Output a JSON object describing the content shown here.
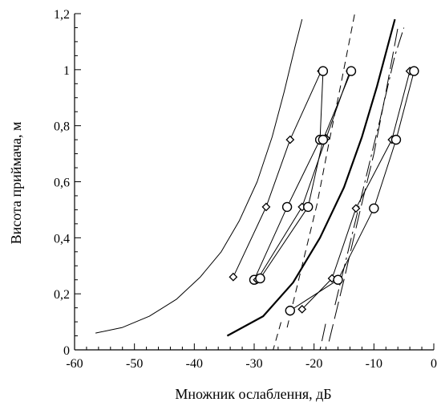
{
  "chart_data": {
    "type": "line",
    "title": "",
    "xlabel": "Множник ослаблення, дБ",
    "ylabel": "Висота приймача, м",
    "xlim": [
      -60,
      0
    ],
    "ylim": [
      0,
      1.2
    ],
    "grid": false,
    "x_ticks": [
      {
        "value": -60,
        "label": "-60"
      },
      {
        "value": -50,
        "label": "-50"
      },
      {
        "value": -40,
        "label": "-40"
      },
      {
        "value": -30,
        "label": "-30"
      },
      {
        "value": -20,
        "label": "-20"
      },
      {
        "value": -10,
        "label": "-10"
      },
      {
        "value": 0,
        "label": "0"
      }
    ],
    "y_ticks": [
      {
        "value": 0,
        "label": "0"
      },
      {
        "value": 0.2,
        "label": "0,2"
      },
      {
        "value": 0.4,
        "label": "0,4"
      },
      {
        "value": 0.6,
        "label": "0,6"
      },
      {
        "value": 0.8,
        "label": "0,8"
      },
      {
        "value": 1.0,
        "label": "1"
      },
      {
        "value": 1.2,
        "label": "1,2"
      }
    ],
    "series": [
      {
        "style": "thin",
        "points": [
          [
            -56.5,
            0.06
          ],
          [
            -52,
            0.08
          ],
          [
            -47.5,
            0.12
          ],
          [
            -43,
            0.18
          ],
          [
            -39,
            0.26
          ],
          [
            -35.5,
            0.35
          ],
          [
            -32.5,
            0.46
          ],
          [
            -29.5,
            0.6
          ],
          [
            -27,
            0.76
          ],
          [
            -25,
            0.92
          ],
          [
            -23.2,
            1.08
          ],
          [
            -22,
            1.18
          ]
        ]
      },
      {
        "style": "thick",
        "points": [
          [
            -34.5,
            0.05
          ],
          [
            -28.5,
            0.12
          ],
          [
            -23.5,
            0.24
          ],
          [
            -19,
            0.4
          ],
          [
            -15,
            0.58
          ],
          [
            -12,
            0.76
          ],
          [
            -9.5,
            0.94
          ],
          [
            -7.5,
            1.1
          ],
          [
            -6.5,
            1.18
          ]
        ]
      },
      {
        "style": "dashed",
        "points": [
          [
            -24.5,
            0.08
          ],
          [
            -22,
            0.3
          ],
          [
            -19.5,
            0.52
          ],
          [
            -17.5,
            0.74
          ],
          [
            -15.5,
            0.95
          ],
          [
            -13.2,
            1.2
          ]
        ]
      },
      {
        "style": "dashed",
        "points": [
          [
            -27.5,
            -0.05
          ],
          [
            -25.5,
            0.1
          ]
        ]
      },
      {
        "style": "long-dashed",
        "points": [
          [
            -17.5,
            0.03
          ],
          [
            -15,
            0.25
          ],
          [
            -12.5,
            0.48
          ],
          [
            -10,
            0.7
          ],
          [
            -8,
            0.92
          ],
          [
            -6,
            1.15
          ]
        ]
      },
      {
        "style": "long-dashed",
        "points": [
          [
            -19.5,
            -0.05
          ],
          [
            -18,
            0.1
          ]
        ]
      },
      {
        "style": "dash-dot",
        "points": [
          [
            -16.5,
            0.16
          ],
          [
            -14,
            0.38
          ],
          [
            -11.5,
            0.6
          ],
          [
            -9,
            0.82
          ],
          [
            -6.5,
            1.05
          ],
          [
            -5,
            1.15
          ]
        ]
      },
      {
        "style": "marker-line",
        "marker": "diamond",
        "points": [
          [
            -33.5,
            0.26
          ],
          [
            -28,
            0.51
          ],
          [
            -24,
            0.75
          ],
          [
            -18.8,
            0.995
          ]
        ]
      },
      {
        "style": "marker-line",
        "marker": "circle",
        "points": [
          [
            -30,
            0.25
          ],
          [
            -24.5,
            0.51
          ],
          [
            -19,
            0.75
          ],
          [
            -18.5,
            0.995
          ]
        ]
      },
      {
        "style": "marker-line",
        "marker": "diamond",
        "points": [
          [
            -29.5,
            0.25
          ],
          [
            -22,
            0.51
          ],
          [
            -18,
            0.755
          ],
          [
            -14,
            0.995
          ]
        ]
      },
      {
        "style": "marker-line",
        "marker": "circle",
        "points": [
          [
            -29,
            0.255
          ],
          [
            -21,
            0.51
          ],
          [
            -18.5,
            0.75
          ],
          [
            -13.8,
            0.995
          ]
        ]
      },
      {
        "style": "marker-line",
        "marker": "diamond",
        "points": [
          [
            -22,
            0.145
          ],
          [
            -17,
            0.255
          ],
          [
            -13,
            0.505
          ],
          [
            -7,
            0.75
          ],
          [
            -4,
            0.995
          ]
        ]
      },
      {
        "style": "marker-line",
        "marker": "circle",
        "points": [
          [
            -24,
            0.14
          ],
          [
            -16,
            0.25
          ],
          [
            -10,
            0.505
          ],
          [
            -6.3,
            0.75
          ],
          [
            -3.3,
            0.995
          ]
        ]
      }
    ]
  }
}
